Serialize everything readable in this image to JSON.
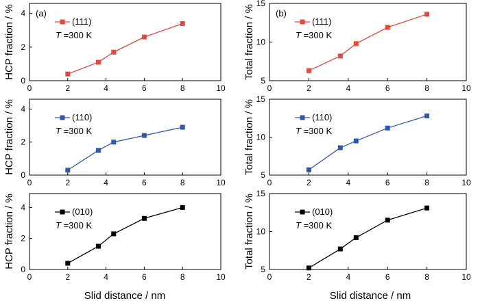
{
  "panel_labels": [
    "(a)",
    "(b)"
  ],
  "xlabel": "Slid distance / nm",
  "legend_temperature": {
    "symbol": "T",
    "text": " =300 K"
  },
  "colors": {
    "111": "#e8473a",
    "110": "#2f57b0",
    "010": "#000000"
  },
  "chart_data": [
    {
      "type": "line",
      "panel": "a",
      "series": [
        {
          "name": "(111)",
          "color": "#e8473a",
          "x": [
            2,
            3.6,
            4.4,
            6,
            8
          ],
          "y": [
            0.4,
            1.1,
            1.7,
            2.6,
            3.4
          ]
        }
      ],
      "xlabel": "",
      "ylabel": "HCP fraction / %",
      "xlim": [
        0,
        10
      ],
      "ylim": [
        0,
        4.6
      ],
      "xticks": [
        0,
        2,
        4,
        6,
        8,
        10
      ],
      "yticks": [
        0,
        2,
        4
      ],
      "legend": "top-left"
    },
    {
      "type": "line",
      "panel": "b",
      "series": [
        {
          "name": "(111)",
          "color": "#e8473a",
          "x": [
            2,
            3.6,
            4.4,
            6,
            8
          ],
          "y": [
            6.3,
            8.2,
            9.8,
            11.9,
            13.6
          ]
        }
      ],
      "xlabel": "",
      "ylabel": "Total fraction / %",
      "xlim": [
        0,
        10
      ],
      "ylim": [
        5,
        15
      ],
      "xticks": [
        0,
        2,
        4,
        6,
        8,
        10
      ],
      "yticks": [
        5,
        10,
        15
      ],
      "legend": "top-left"
    },
    {
      "type": "line",
      "panel": "a",
      "series": [
        {
          "name": "(110)",
          "color": "#2f57b0",
          "x": [
            2,
            3.6,
            4.4,
            6,
            8
          ],
          "y": [
            0.3,
            1.5,
            2.0,
            2.4,
            2.9
          ]
        }
      ],
      "xlabel": "",
      "ylabel": "HCP fraction / %",
      "xlim": [
        0,
        10
      ],
      "ylim": [
        0,
        4.6
      ],
      "xticks": [
        0,
        2,
        4,
        6,
        8,
        10
      ],
      "yticks": [
        0,
        2,
        4
      ],
      "legend": "top-left"
    },
    {
      "type": "line",
      "panel": "b",
      "series": [
        {
          "name": "(110)",
          "color": "#2f57b0",
          "x": [
            2,
            3.6,
            4.4,
            6,
            8
          ],
          "y": [
            5.7,
            8.6,
            9.5,
            11.2,
            12.8
          ]
        }
      ],
      "xlabel": "",
      "ylabel": "Total fraction / %",
      "xlim": [
        0,
        10
      ],
      "ylim": [
        5,
        15
      ],
      "xticks": [
        0,
        2,
        4,
        6,
        8,
        10
      ],
      "yticks": [
        5,
        10,
        15
      ],
      "legend": "top-left"
    },
    {
      "type": "line",
      "panel": "a",
      "series": [
        {
          "name": "(010)",
          "color": "#000000",
          "x": [
            2,
            3.6,
            4.4,
            6,
            8
          ],
          "y": [
            0.4,
            1.5,
            2.3,
            3.3,
            4.0
          ]
        }
      ],
      "xlabel": "Slid distance / nm",
      "ylabel": "HCP fraction / %",
      "xlim": [
        0,
        10
      ],
      "ylim": [
        0,
        4.9
      ],
      "xticks": [
        0,
        2,
        4,
        6,
        8,
        10
      ],
      "yticks": [
        0,
        2,
        4
      ],
      "legend": "top-left"
    },
    {
      "type": "line",
      "panel": "b",
      "series": [
        {
          "name": "(010)",
          "color": "#000000",
          "x": [
            2,
            3.6,
            4.4,
            6,
            8
          ],
          "y": [
            5.2,
            7.7,
            9.2,
            11.5,
            13.1
          ]
        }
      ],
      "xlabel": "Slid distance / nm",
      "ylabel": "Total fraction / %",
      "xlim": [
        0,
        10
      ],
      "ylim": [
        5,
        15
      ],
      "xticks": [
        0,
        2,
        4,
        6,
        8,
        10
      ],
      "yticks": [
        5,
        10,
        15
      ],
      "legend": "top-left"
    }
  ]
}
